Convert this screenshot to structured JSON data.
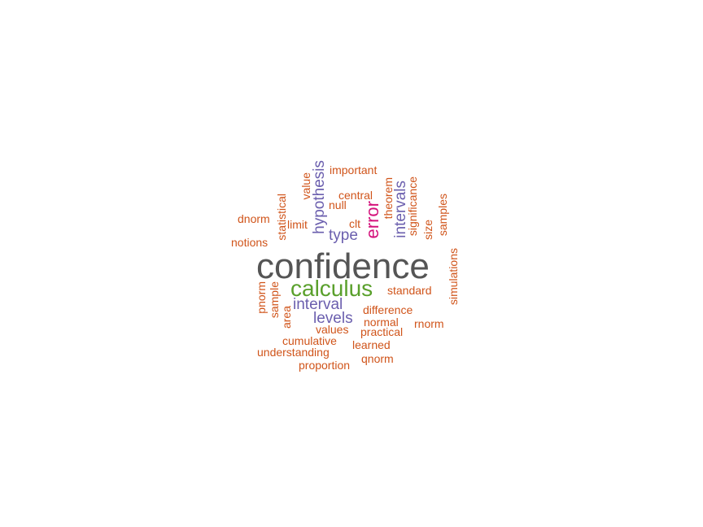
{
  "colors": {
    "gray": "#555555",
    "green": "#5aa02c",
    "purple": "#6b5fae",
    "magenta": "#d4137c",
    "orange": "#d0541a"
  },
  "words": {
    "confidence": "confidence",
    "calculus": "calculus",
    "error": "error",
    "hypothesis": "hypothesis",
    "intervals": "intervals",
    "type": "type",
    "interval": "interval",
    "levels": "levels",
    "important": "important",
    "value": "value",
    "central": "central",
    "null": "null",
    "theorem": "theorem",
    "significance": "significance",
    "samples": "samples",
    "dnorm": "dnorm",
    "statistical": "statistical",
    "limit": "limit",
    "clt": "clt",
    "size": "size",
    "notions": "notions",
    "simulations": "simulations",
    "pnorm": "pnorm",
    "sample": "sample",
    "standard": "standard",
    "area": "area",
    "difference": "difference",
    "normal": "normal",
    "rnorm": "rnorm",
    "values": "values",
    "practical": "practical",
    "cumulative": "cumulative",
    "learned": "learned",
    "understanding": "understanding",
    "qnorm": "qnorm",
    "proportion": "proportion"
  }
}
